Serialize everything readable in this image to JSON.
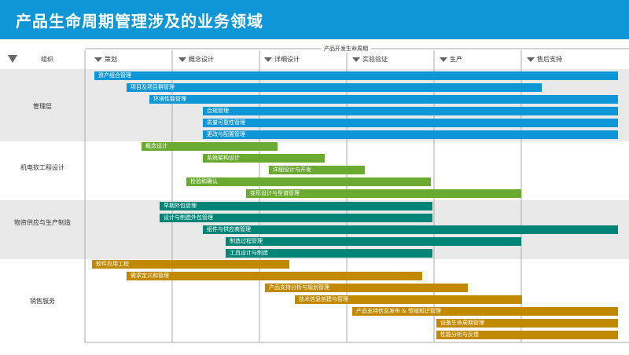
{
  "header": {
    "title": "产品生命周期管理涉及的业务领域"
  },
  "lifecycle_label": "产品开发生命周期",
  "org_label": "组织",
  "phases": [
    "策划",
    "概念设计",
    "详细设计",
    "实验验证",
    "生产",
    "售后支持"
  ],
  "groups": [
    {
      "label": "管理层"
    },
    {
      "label": "机电软工程设计"
    },
    {
      "label": "物资供应与生产制造"
    },
    {
      "label": "销售服务"
    }
  ],
  "bars": {
    "mgmt": [
      "资产组合管理",
      "项目及项目群管理",
      "环境性能管理",
      "合规管理",
      "质量可靠性管理",
      "更改与配置管理"
    ],
    "mech": [
      "概念设计",
      "系统架构设计",
      "详细设计与开发",
      "检验和确认",
      "变形设计与型谱管理"
    ],
    "supply": [
      "早期外包管理",
      "设计与制造外包管理",
      "组件与供应商管理",
      "制造过程管理",
      "工具设计与制造"
    ],
    "sales": [
      "软件应用工程",
      "需求定义和管理",
      "产品支持分析与规划管理",
      "技术信息创建与管理",
      "产品支持信息发布 & 领域知识管理",
      "设备生命周期管理",
      "性能分析与反馈"
    ]
  },
  "colors": {
    "header": "#0e96d6",
    "mgmt": "#0e96d6",
    "mech": "#6aaa30",
    "supply": "#008577",
    "sales": "#c08900"
  }
}
